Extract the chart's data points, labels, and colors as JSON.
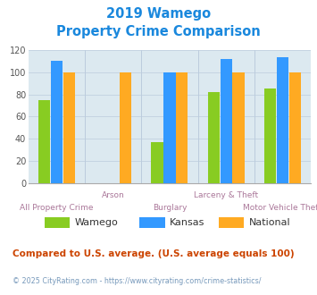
{
  "title_line1": "2019 Wamego",
  "title_line2": "Property Crime Comparison",
  "categories": [
    "All Property Crime",
    "Arson",
    "Burglary",
    "Larceny & Theft",
    "Motor Vehicle Theft"
  ],
  "series": {
    "Wamego": [
      75,
      0,
      37,
      82,
      85
    ],
    "Kansas": [
      110,
      0,
      100,
      112,
      114
    ],
    "National": [
      100,
      100,
      100,
      100,
      100
    ]
  },
  "colors": {
    "Wamego": "#88cc22",
    "Kansas": "#3399ff",
    "National": "#ffaa22"
  },
  "ylim": [
    0,
    120
  ],
  "yticks": [
    0,
    20,
    40,
    60,
    80,
    100,
    120
  ],
  "background_color": "#dce9f0",
  "title_color": "#1a88dd",
  "xlabel_color": "#aa7799",
  "grid_color": "#bbccdd",
  "footer_text": "Compared to U.S. average. (U.S. average equals 100)",
  "footer_color": "#cc4400",
  "credit_text": "© 2025 CityRating.com - https://www.cityrating.com/crime-statistics/",
  "credit_color": "#7799bb",
  "legend_label_color": "#333333",
  "top_labels": [
    "",
    "Arson",
    "",
    "Larceny & Theft",
    ""
  ],
  "bot_labels": [
    "All Property Crime",
    "",
    "Burglary",
    "",
    "Motor Vehicle Theft"
  ]
}
